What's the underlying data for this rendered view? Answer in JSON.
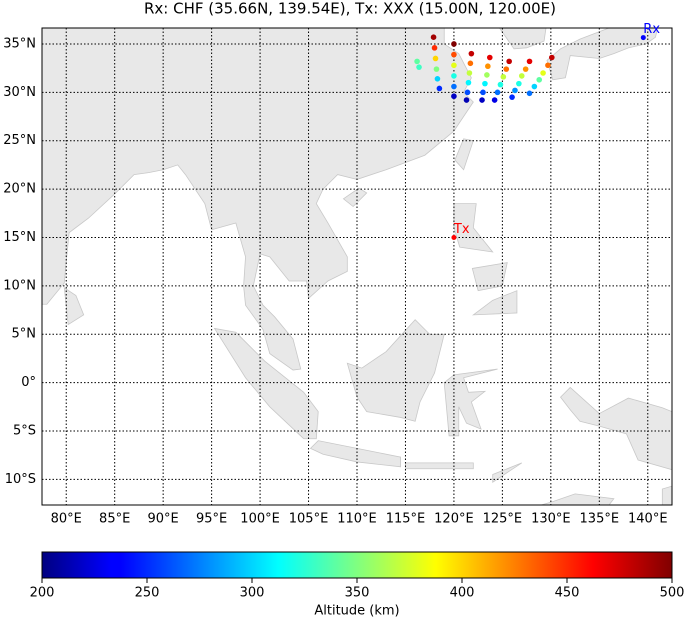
{
  "chart_data": {
    "type": "scatter",
    "title": "Rx: CHF (35.66N, 139.54E), Tx: XXX (15.00N, 120.00E)",
    "xlim": [
      77.5,
      142.5
    ],
    "ylim": [
      -12.65,
      36.65
    ],
    "xticks": [
      {
        "value": 80,
        "label": "80°E"
      },
      {
        "value": 85,
        "label": "85°E"
      },
      {
        "value": 90,
        "label": "90°E"
      },
      {
        "value": 95,
        "label": "95°E"
      },
      {
        "value": 100,
        "label": "100°E"
      },
      {
        "value": 105,
        "label": "105°E"
      },
      {
        "value": 110,
        "label": "110°E"
      },
      {
        "value": 115,
        "label": "115°E"
      },
      {
        "value": 120,
        "label": "120°E"
      },
      {
        "value": 125,
        "label": "125°E"
      },
      {
        "value": 130,
        "label": "130°E"
      },
      {
        "value": 135,
        "label": "135°E"
      },
      {
        "value": 140,
        "label": "140°E"
      }
    ],
    "yticks": [
      {
        "value": -10,
        "label": "10°S"
      },
      {
        "value": -5,
        "label": "5°S"
      },
      {
        "value": 0,
        "label": "0°"
      },
      {
        "value": 5,
        "label": "5°N"
      },
      {
        "value": 10,
        "label": "10°N"
      },
      {
        "value": 15,
        "label": "15°N"
      },
      {
        "value": 20,
        "label": "20°N"
      },
      {
        "value": 25,
        "label": "25°N"
      },
      {
        "value": 30,
        "label": "30°N"
      },
      {
        "value": 35,
        "label": "35°N"
      }
    ],
    "grid": true,
    "colormap": "jet",
    "clim": [
      200,
      500
    ],
    "cticks": [
      200,
      250,
      300,
      350,
      400,
      450,
      500
    ],
    "colorbar_label": "Altitude (km)",
    "x": [
      117.9,
      118.0,
      118.1,
      118.2,
      118.3,
      118.5,
      116.2,
      116.4,
      120,
      120,
      120,
      120,
      120,
      120,
      121.8,
      121.7,
      121.6,
      121.5,
      121.4,
      121.3,
      123.7,
      123.5,
      123.4,
      123.2,
      123.0,
      122.9,
      125.7,
      125.4,
      125.1,
      124.8,
      124.5,
      124.2,
      127.8,
      127.4,
      127.0,
      126.7,
      126.3,
      126.0,
      130.1,
      129.7,
      129.2,
      128.8,
      128.3,
      127.8
    ],
    "y": [
      35.7,
      34.6,
      33.5,
      32.4,
      31.4,
      30.4,
      33.2,
      32.6,
      35,
      33.9,
      32.8,
      31.7,
      30.6,
      29.6,
      34,
      33,
      32,
      31,
      30,
      29.2,
      33.6,
      32.7,
      31.8,
      30.9,
      30,
      29.2,
      33.2,
      32.4,
      31.6,
      30.8,
      30,
      29.2,
      33.2,
      32.4,
      31.7,
      30.9,
      30.2,
      29.5,
      33.6,
      32.8,
      32,
      31.3,
      30.6,
      29.9
    ],
    "values": [
      490,
      450,
      400,
      350,
      300,
      250,
      340,
      330,
      500,
      440,
      380,
      320,
      270,
      220,
      480,
      430,
      370,
      310,
      260,
      215,
      470,
      420,
      360,
      310,
      260,
      220,
      480,
      430,
      370,
      320,
      270,
      230,
      470,
      420,
      370,
      320,
      280,
      250,
      480,
      430,
      380,
      340,
      300,
      270
    ],
    "stations": [
      {
        "label": "Tx",
        "x": 120,
        "y": 15,
        "color": "#ff0000"
      },
      {
        "label": "Rx",
        "x": 139.54,
        "y": 35.66,
        "color": "#0000ff"
      }
    ]
  }
}
